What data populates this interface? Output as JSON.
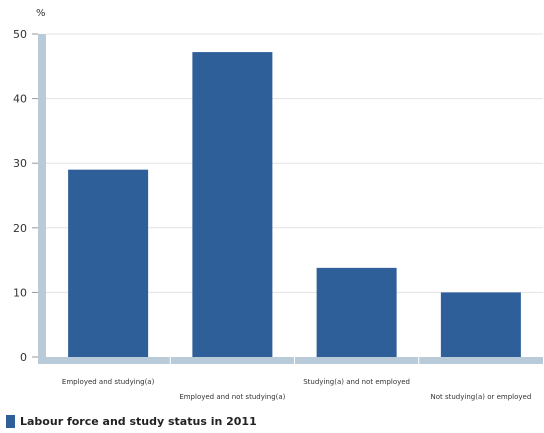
{
  "chart_data": {
    "type": "bar",
    "categories": [
      "Employed and studying(a)",
      "Employed and not studying(a)",
      "Studying(a) and not employed",
      "Not studying(a) or employed"
    ],
    "values": [
      29,
      47.2,
      13.8,
      10
    ],
    "y_unit": "%",
    "ylim": [
      0,
      50
    ],
    "yticks": [
      0,
      10,
      20,
      30,
      40,
      50
    ],
    "grid": true,
    "legend_position": "bottom-left",
    "series": [
      {
        "name": "Labour force and study status in 2011",
        "values": [
          29,
          47.2,
          13.8,
          10
        ]
      }
    ]
  },
  "colors": {
    "bar": "#2e5f98",
    "axis": "#b9cad9",
    "grid": "#e3e3e3"
  }
}
